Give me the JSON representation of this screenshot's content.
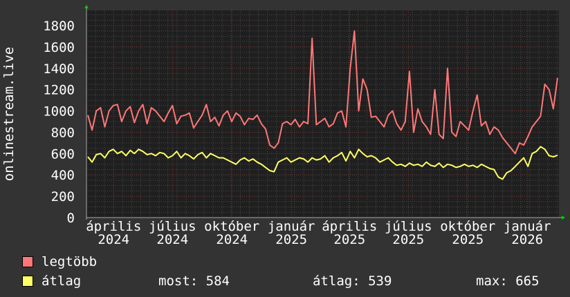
{
  "chart_data": {
    "type": "line",
    "ylabel": "onlinestream.live",
    "ylim": [
      0,
      1900
    ],
    "y_ticks": [
      0,
      200,
      400,
      600,
      800,
      1000,
      1200,
      1400,
      1600,
      1800
    ],
    "xlim": [
      "2024-02-19",
      "2026-02-19"
    ],
    "x_ticks": [
      {
        "date": "2024-04-01",
        "label": "április 2024"
      },
      {
        "date": "2024-07-01",
        "label": "július 2024"
      },
      {
        "date": "2024-10-01",
        "label": "október 2024"
      },
      {
        "date": "2025-01-01",
        "label": "január 2025"
      },
      {
        "date": "2025-04-01",
        "label": "április 2025"
      },
      {
        "date": "2025-07-01",
        "label": "július 2025"
      },
      {
        "date": "2025-10-01",
        "label": "október 2025"
      },
      {
        "date": "2026-01-01",
        "label": "január 2026"
      }
    ],
    "grid": true,
    "legend_placement": "bottom-left",
    "series": [
      {
        "name": "legtöbb",
        "color": "#ff7777",
        "values": [
          960,
          820,
          1000,
          1030,
          850,
          1000,
          1050,
          1060,
          900,
          1000,
          1040,
          890,
          1000,
          1060,
          880,
          1030,
          1000,
          950,
          900,
          980,
          1050,
          880,
          950,
          960,
          980,
          840,
          900,
          960,
          1060,
          900,
          940,
          860,
          960,
          1000,
          900,
          980,
          950,
          870,
          930,
          920,
          960,
          880,
          830,
          680,
          650,
          700,
          880,
          900,
          870,
          920,
          850,
          900,
          880,
          1680,
          870,
          900,
          930,
          850,
          880,
          980,
          1000,
          850,
          1400,
          1750,
          1000,
          1300,
          1200,
          940,
          950,
          900,
          850,
          960,
          1000,
          880,
          820,
          900,
          1370,
          800,
          1020,
          900,
          850,
          780,
          1200,
          780,
          740,
          1400,
          800,
          760,
          900,
          860,
          820,
          1000,
          1150,
          860,
          900,
          780,
          850,
          820,
          750,
          700,
          650,
          600,
          700,
          680,
          760,
          850,
          900,
          950,
          1250,
          1200,
          1020,
          1310
        ]
      },
      {
        "name": "átlag",
        "color": "#ffff66",
        "values": [
          570,
          520,
          590,
          600,
          560,
          620,
          640,
          600,
          620,
          580,
          630,
          600,
          640,
          620,
          590,
          600,
          580,
          610,
          600,
          560,
          580,
          620,
          560,
          600,
          580,
          550,
          590,
          610,
          560,
          600,
          580,
          560,
          560,
          540,
          520,
          500,
          540,
          560,
          530,
          550,
          520,
          500,
          470,
          440,
          430,
          520,
          540,
          560,
          520,
          540,
          560,
          550,
          520,
          560,
          540,
          550,
          580,
          520,
          560,
          580,
          610,
          530,
          620,
          560,
          640,
          600,
          570,
          580,
          560,
          520,
          540,
          560,
          520,
          490,
          500,
          480,
          510,
          490,
          500,
          480,
          520,
          490,
          480,
          510,
          470,
          500,
          490,
          470,
          480,
          500,
          480,
          490,
          470,
          500,
          480,
          460,
          450,
          380,
          360,
          420,
          440,
          480,
          520,
          560,
          480,
          600,
          620,
          665,
          640,
          580,
          570,
          584
        ]
      }
    ]
  },
  "legend": {
    "max_label": "legtöbb",
    "avg_label": "átlag",
    "now": "most: 584",
    "average": "átlag: 539",
    "maximum": "max: 665"
  }
}
